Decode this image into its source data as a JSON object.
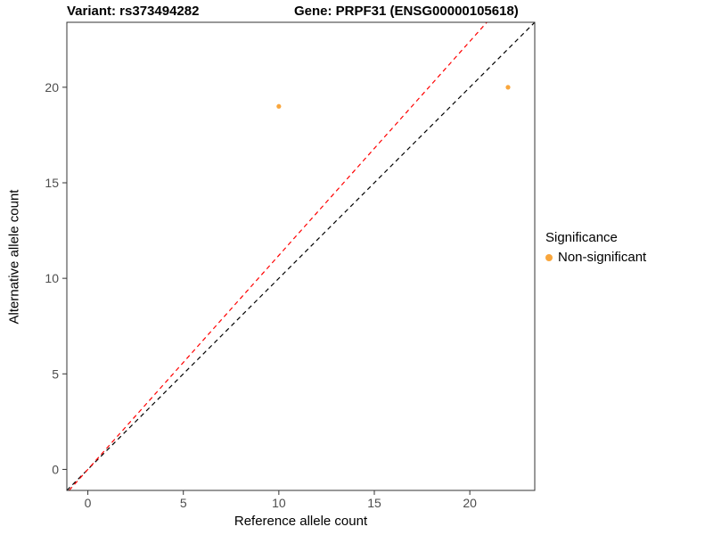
{
  "chart_data": {
    "type": "scatter",
    "title_left": "Variant: rs373494282",
    "title_right": "Gene: PRPF31 (ENSG00000105618)",
    "xlabel": "Reference allele count",
    "ylabel": "Alternative allele count",
    "xlim": [
      -1.1,
      23.4
    ],
    "ylim": [
      -1.1,
      23.4
    ],
    "xticks": [
      0,
      5,
      10,
      15,
      20
    ],
    "yticks": [
      0,
      5,
      10,
      15,
      20
    ],
    "grid": false,
    "point_color": "#F9A63C",
    "point_radius": 2.6,
    "points": [
      {
        "x": 10,
        "y": 19,
        "significance": "Non-significant"
      },
      {
        "x": 22,
        "y": 20,
        "significance": "Non-significant"
      }
    ],
    "lines": [
      {
        "name": "identity-line",
        "slope": 1.0,
        "intercept": 0,
        "color": "#000000",
        "dash": "5 4"
      },
      {
        "name": "expected-ratio-line",
        "slope": 1.12,
        "intercept": 0,
        "color": "#FF0000",
        "dash": "5 4"
      }
    ],
    "legend": {
      "title": "Significance",
      "position": "right",
      "items": [
        {
          "label": "Non-significant",
          "color": "#F9A63C"
        }
      ]
    },
    "panel_border_color": "#333333",
    "tick_label_color": "#4d4d4d"
  }
}
